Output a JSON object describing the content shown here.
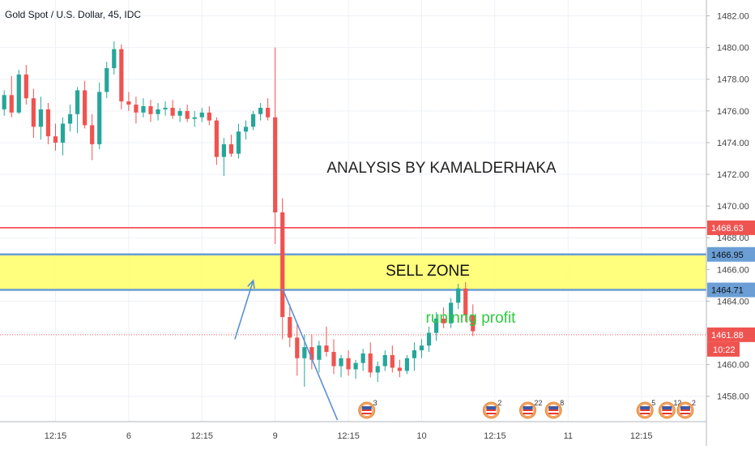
{
  "header": {
    "symbol_title": "Gold Spot / U.S. Dollar, 45, IDC"
  },
  "annotations": {
    "analysis_text": "ANALYSIS BY KAMALDERHAKA",
    "zone_text": "SELL ZONE",
    "profit_text": "runinng profit"
  },
  "countdown": "10:22",
  "colors": {
    "up": "#26a69a",
    "down": "#ef5350",
    "zone_fill": "#ffff66",
    "zone_line": "#6a9ed4",
    "red_line": "#f23645",
    "profit_text": "#2ecc40",
    "arrow": "#5b8fd4",
    "grid": "#eef1f5",
    "axis_text": "#444444",
    "price_badge_red": "#ef5350",
    "price_badge_blue": "#6a9ed4"
  },
  "chart_data": {
    "type": "candlestick",
    "title": "Gold Spot / U.S. Dollar, 45, IDC",
    "interval": "45",
    "ylim": [
      1456.4,
      1483.0
    ],
    "y_ticks": [
      1458.0,
      1460.0,
      1462.0,
      1464.0,
      1466.0,
      1468.0,
      1470.0,
      1472.0,
      1474.0,
      1476.0,
      1478.0,
      1480.0,
      1482.0
    ],
    "y_tick_labels": [
      "1458.00",
      "1460.00",
      "1462.00",
      "1464.00",
      "1466.00",
      "1468.00",
      "1470.00",
      "1472.00",
      "1474.00",
      "1476.00",
      "1478.00",
      "1480.00",
      "1482.00"
    ],
    "x_ticks": [
      {
        "label": "12:15",
        "bar": 7
      },
      {
        "label": "6",
        "bar": 17
      },
      {
        "label": "12:15",
        "bar": 27
      },
      {
        "label": "9",
        "bar": 37
      },
      {
        "label": "12:15",
        "bar": 47
      },
      {
        "label": "10",
        "bar": 57
      },
      {
        "label": "12:15",
        "bar": 67
      },
      {
        "label": "11",
        "bar": 77
      },
      {
        "label": "12:15",
        "bar": 87
      }
    ],
    "levels": [
      {
        "label": "1468.63",
        "value": 1468.63,
        "style": "red"
      },
      {
        "label": "1466.95",
        "value": 1466.95,
        "style": "blue"
      },
      {
        "label": "1464.71",
        "value": 1464.71,
        "style": "blue"
      },
      {
        "label": "1461.88",
        "value": 1461.88,
        "style": "current"
      }
    ],
    "sell_zone": {
      "top": 1466.95,
      "bottom": 1464.71,
      "label": "SELL ZONE"
    },
    "arrows": [
      {
        "from": [
          31.5,
          1461.6
        ],
        "to": [
          34.0,
          1465.3
        ],
        "direction": "up"
      },
      {
        "from": [
          38.0,
          1464.8
        ],
        "to": [
          45.5,
          1456.5
        ],
        "direction": "down"
      }
    ],
    "event_markers": [
      {
        "bar": 49.5,
        "label": "3"
      },
      {
        "bar": 66.5,
        "label": "2"
      },
      {
        "bar": 71.5,
        "label": "22"
      },
      {
        "bar": 75.0,
        "label": "8"
      },
      {
        "bar": 87.5,
        "label": "5"
      },
      {
        "bar": 90.5,
        "label": "12"
      },
      {
        "bar": 93.0,
        "label": "2"
      }
    ],
    "ohlc": [
      [
        1476.1,
        1477.3,
        1475.7,
        1477.0
      ],
      [
        1477.0,
        1478.2,
        1475.6,
        1475.9
      ],
      [
        1475.9,
        1478.6,
        1475.8,
        1478.3
      ],
      [
        1478.3,
        1478.9,
        1476.4,
        1476.8
      ],
      [
        1476.8,
        1477.4,
        1474.3,
        1475.0
      ],
      [
        1475.0,
        1476.9,
        1474.2,
        1476.1
      ],
      [
        1476.1,
        1476.5,
        1473.9,
        1474.4
      ],
      [
        1474.4,
        1475.2,
        1473.5,
        1474.0
      ],
      [
        1474.0,
        1475.6,
        1473.2,
        1475.2
      ],
      [
        1475.2,
        1476.4,
        1474.7,
        1475.8
      ],
      [
        1475.8,
        1477.5,
        1474.6,
        1477.3
      ],
      [
        1477.3,
        1477.9,
        1474.9,
        1475.1
      ],
      [
        1475.1,
        1475.8,
        1472.9,
        1473.9
      ],
      [
        1473.9,
        1477.8,
        1473.6,
        1477.2
      ],
      [
        1477.2,
        1479.1,
        1476.8,
        1478.7
      ],
      [
        1478.7,
        1480.4,
        1478.3,
        1479.9
      ],
      [
        1479.9,
        1480.2,
        1476.1,
        1476.6
      ],
      [
        1476.6,
        1477.2,
        1476.0,
        1476.4
      ],
      [
        1476.4,
        1476.9,
        1475.2,
        1475.9
      ],
      [
        1475.9,
        1476.8,
        1475.6,
        1476.3
      ],
      [
        1476.3,
        1476.7,
        1475.3,
        1475.8
      ],
      [
        1475.8,
        1476.5,
        1475.4,
        1476.1
      ],
      [
        1476.1,
        1476.6,
        1475.7,
        1476.2
      ],
      [
        1476.2,
        1476.7,
        1475.5,
        1475.7
      ],
      [
        1475.7,
        1476.2,
        1475.3,
        1476.0
      ],
      [
        1476.0,
        1476.4,
        1475.3,
        1475.5
      ],
      [
        1475.5,
        1476.0,
        1475.0,
        1475.6
      ],
      [
        1475.6,
        1476.2,
        1475.3,
        1475.9
      ],
      [
        1475.9,
        1476.3,
        1475.1,
        1475.4
      ],
      [
        1475.4,
        1475.6,
        1472.6,
        1473.1
      ],
      [
        1473.1,
        1474.3,
        1471.9,
        1473.9
      ],
      [
        1473.9,
        1474.5,
        1473.1,
        1473.3
      ],
      [
        1473.3,
        1475.2,
        1473.0,
        1474.7
      ],
      [
        1474.7,
        1475.4,
        1474.2,
        1475.0
      ],
      [
        1475.0,
        1476.0,
        1474.8,
        1475.8
      ],
      [
        1475.8,
        1476.5,
        1475.4,
        1476.2
      ],
      [
        1476.2,
        1476.8,
        1475.4,
        1475.6
      ],
      [
        1475.6,
        1480.0,
        1467.6,
        1469.6
      ],
      [
        1469.6,
        1470.5,
        1461.6,
        1463.0
      ],
      [
        1463.0,
        1463.8,
        1461.1,
        1461.7
      ],
      [
        1461.7,
        1462.6,
        1459.3,
        1460.4
      ],
      [
        1460.4,
        1461.9,
        1458.6,
        1461.1
      ],
      [
        1461.1,
        1461.9,
        1459.7,
        1460.3
      ],
      [
        1460.3,
        1461.5,
        1459.5,
        1461.2
      ],
      [
        1461.2,
        1462.4,
        1460.5,
        1460.8
      ],
      [
        1460.8,
        1461.6,
        1459.4,
        1459.9
      ],
      [
        1459.9,
        1460.6,
        1459.2,
        1460.4
      ],
      [
        1460.4,
        1460.9,
        1459.3,
        1459.7
      ],
      [
        1459.7,
        1460.3,
        1459.1,
        1460.1
      ],
      [
        1460.1,
        1461.0,
        1459.6,
        1460.7
      ],
      [
        1460.7,
        1461.4,
        1459.2,
        1459.5
      ],
      [
        1459.5,
        1460.2,
        1458.9,
        1459.9
      ],
      [
        1459.9,
        1460.9,
        1459.6,
        1460.6
      ],
      [
        1460.6,
        1461.2,
        1459.5,
        1459.8
      ],
      [
        1459.8,
        1460.3,
        1459.2,
        1459.6
      ],
      [
        1459.6,
        1460.6,
        1459.4,
        1460.4
      ],
      [
        1460.4,
        1461.4,
        1459.6,
        1460.9
      ],
      [
        1460.9,
        1461.6,
        1460.4,
        1461.2
      ],
      [
        1461.2,
        1462.4,
        1460.8,
        1462.0
      ],
      [
        1462.0,
        1463.3,
        1461.5,
        1462.9
      ],
      [
        1462.9,
        1463.6,
        1462.3,
        1462.6
      ],
      [
        1462.6,
        1464.2,
        1462.3,
        1463.9
      ],
      [
        1463.9,
        1465.1,
        1463.5,
        1464.8
      ],
      [
        1464.8,
        1465.2,
        1462.7,
        1463.1
      ],
      [
        1463.1,
        1463.8,
        1461.8,
        1462.1
      ]
    ]
  }
}
